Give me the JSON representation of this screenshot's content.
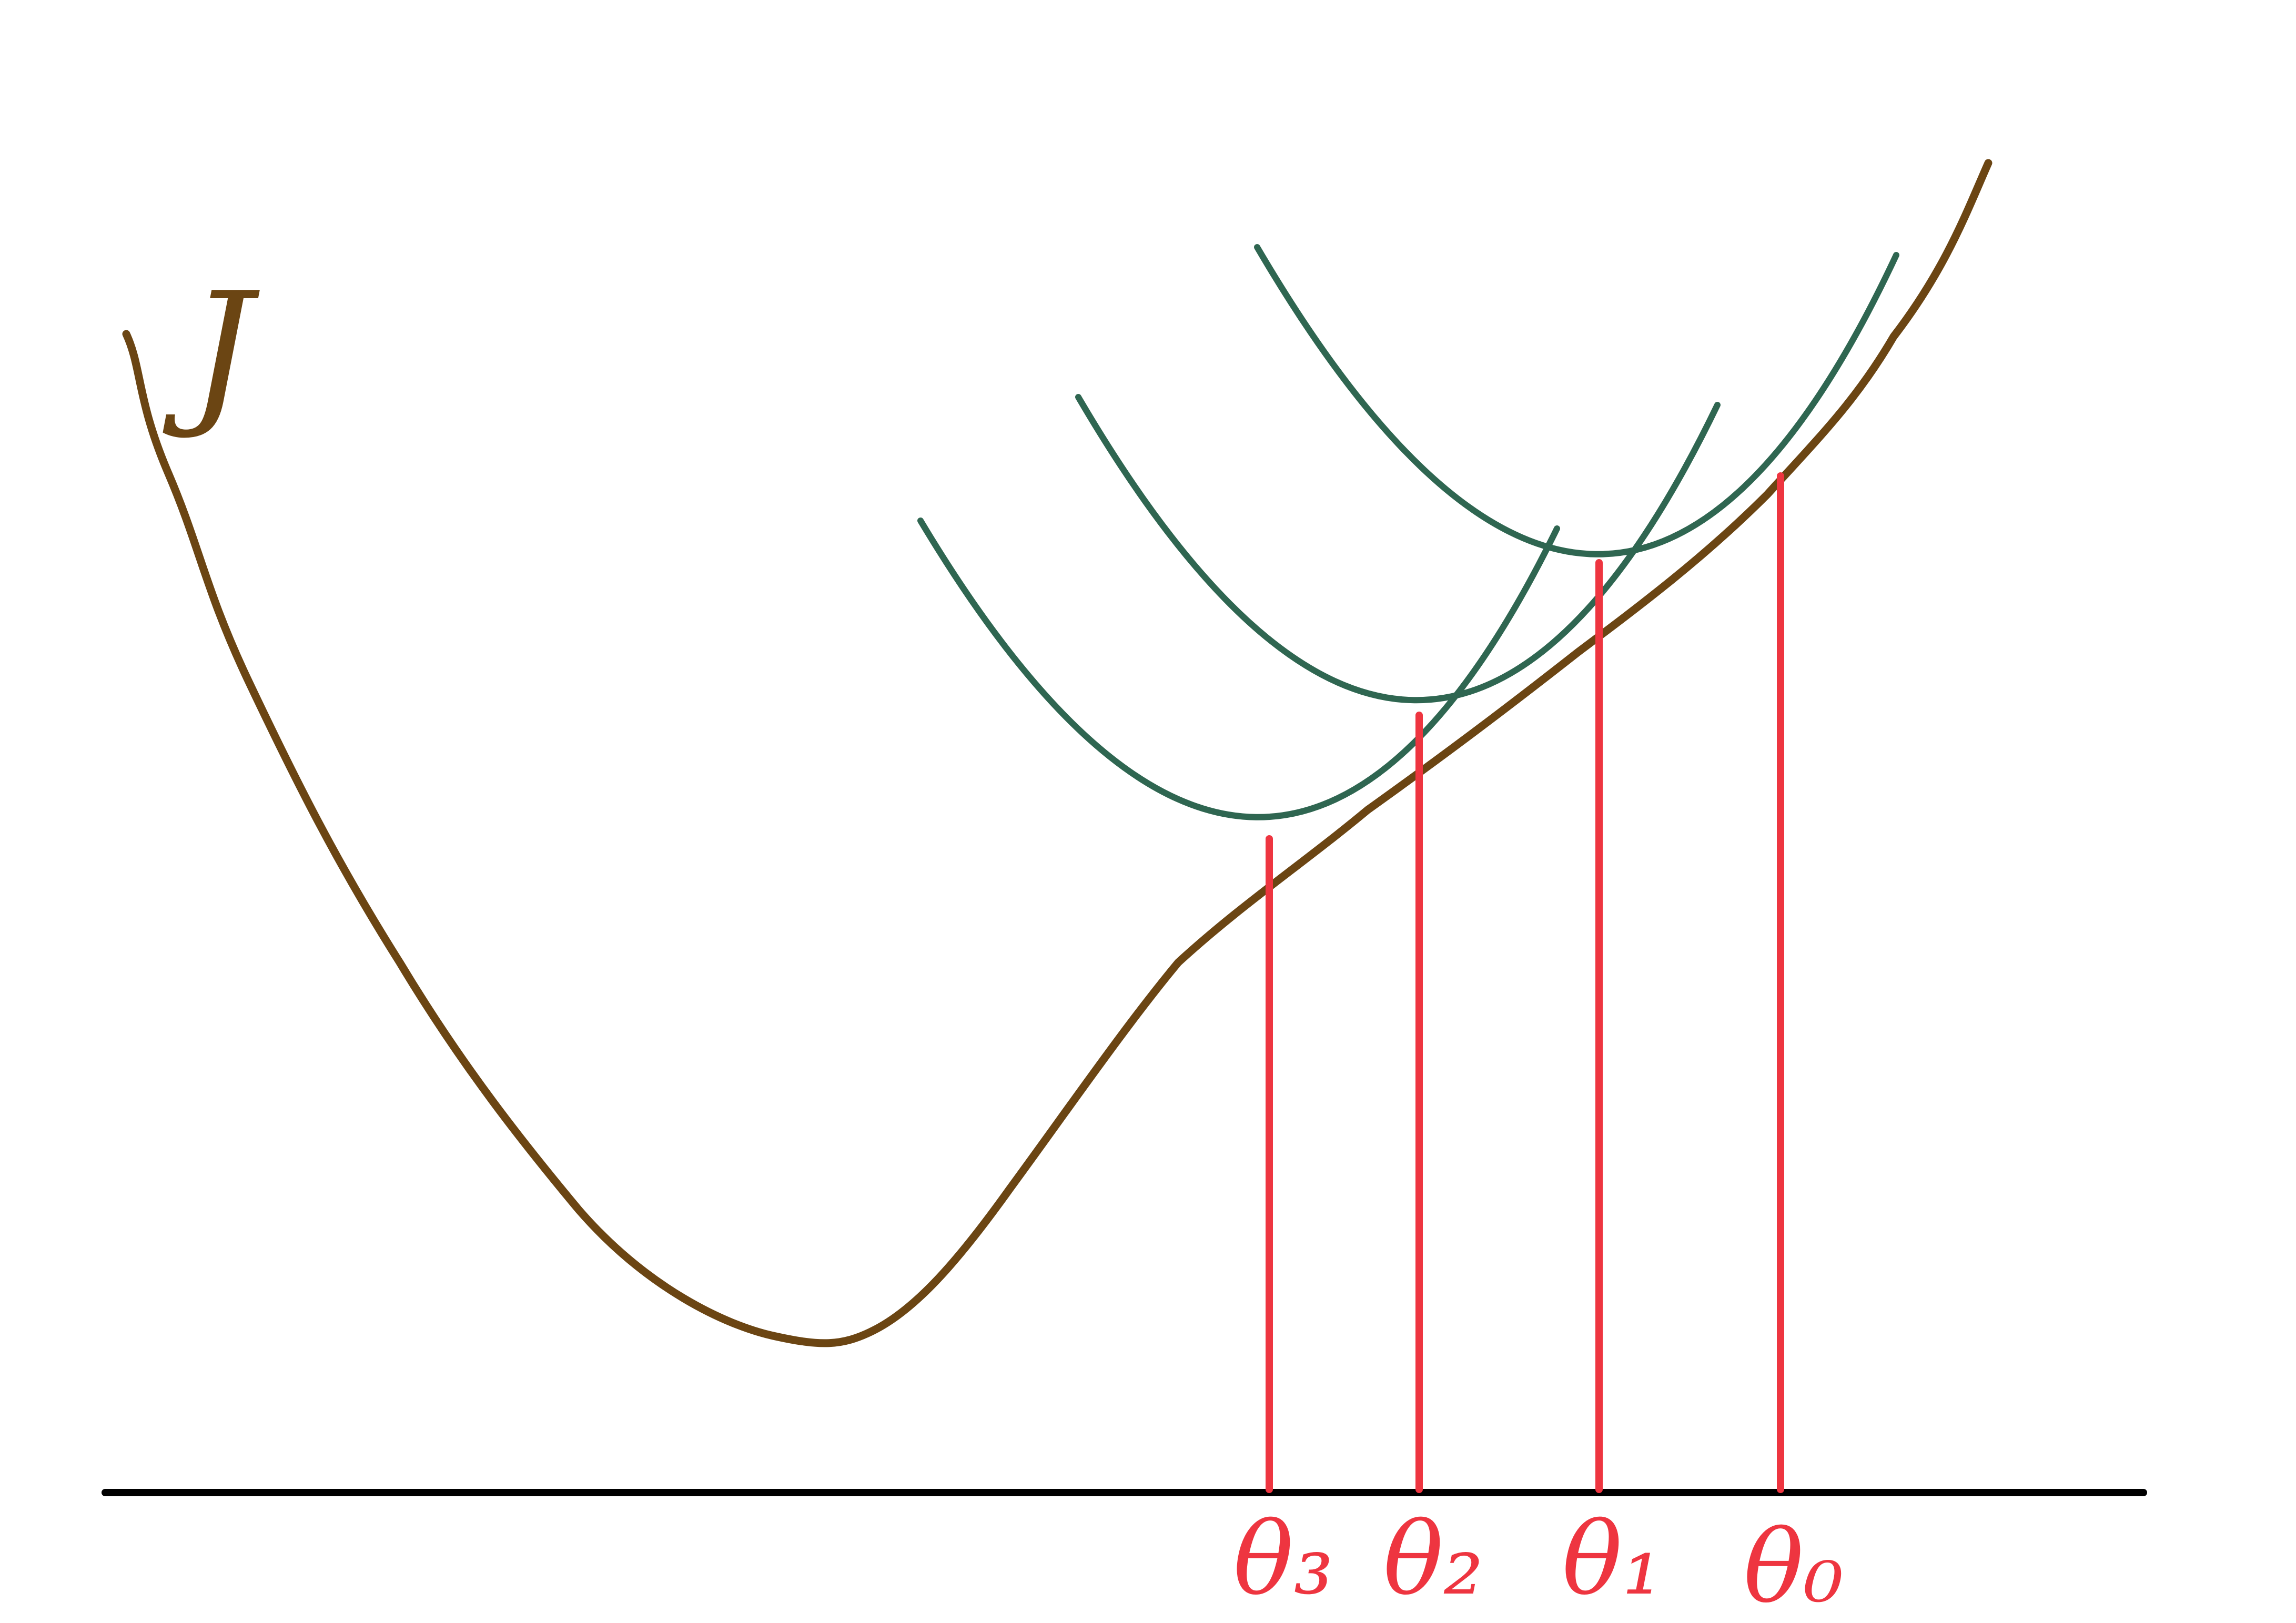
{
  "colors": {
    "background": "#ffffff",
    "cost_curve": "#6b4513",
    "surrogate_curve": "#2f6651",
    "marker": "#ee3540",
    "axis": "#000000"
  },
  "labels": {
    "y_axis": "J",
    "theta3": "θ₃",
    "theta2": "θ₂",
    "theta1": "θ₁",
    "theta0": "θ₀"
  }
}
